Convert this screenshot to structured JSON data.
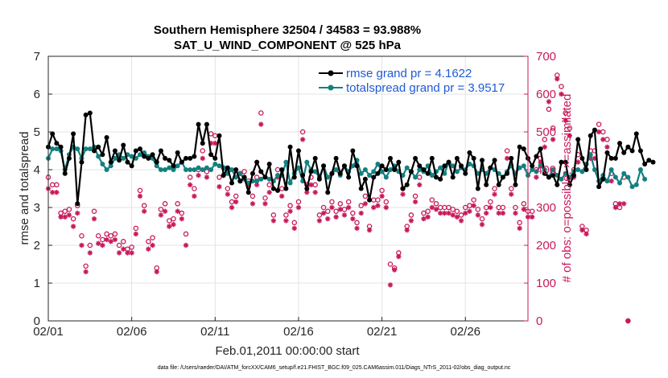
{
  "chart_data": {
    "type": "line",
    "title_line1": "Southern Hemisphere 32504 / 34583 = 93.988%",
    "title_line2": "SAT_U_WIND_COMPONENT @ 525 hPa",
    "xlabel": "Feb.01,2011 00:00:00 start",
    "ylabel_left": "rmse and totalspread",
    "ylabel_right": "# of obs: o=possible; ×=assimilated",
    "footnote": "data file: /Users/raeder/DAI/ATM_forcXX/CAM6_setup/f.e21.FHIST_BGC.f09_025.CAM6assim.011/Diags_NTrS_2011-02/obs_diag_output.nc",
    "xlim": [
      0,
      28.75
    ],
    "ylim_left": [
      0,
      7
    ],
    "ylim_right": [
      0,
      700
    ],
    "x_ticks": [
      {
        "label": "02/01",
        "day": 0
      },
      {
        "label": "02/06",
        "day": 5
      },
      {
        "label": "02/11",
        "day": 10
      },
      {
        "label": "02/16",
        "day": 15
      },
      {
        "label": "02/21",
        "day": 20
      },
      {
        "label": "02/26",
        "day": 25
      }
    ],
    "y_ticks_left": [
      "0",
      "1",
      "2",
      "3",
      "4",
      "5",
      "6",
      "7"
    ],
    "y_ticks_right": [
      "0",
      "100",
      "200",
      "300",
      "400",
      "500",
      "600",
      "700"
    ],
    "x_step_days": 0.25,
    "colors": {
      "rmse": "#000000",
      "spread": "#138080",
      "obs": "#c8195a",
      "legend_text": "#1f5ad6"
    },
    "legend": [
      {
        "label": "rmse grand pr = 4.1622",
        "series": "rmse"
      },
      {
        "label": "totalspread grand pr = 3.9517",
        "series": "spread"
      }
    ],
    "series": [
      {
        "name": "rmse",
        "values": [
          4.6,
          4.95,
          4.7,
          4.6,
          3.9,
          4.3,
          4.95,
          3.1,
          4.2,
          5.45,
          5.5,
          4.5,
          4.6,
          4.4,
          4.85,
          4.2,
          4.5,
          4.25,
          4.65,
          4.2,
          4.1,
          4.5,
          4.55,
          4.35,
          4.3,
          4.4,
          4.2,
          4.5,
          4.3,
          4.25,
          4.1,
          4.45,
          4.2,
          4.3,
          4.3,
          4.35,
          5.2,
          4.7,
          5.2,
          4.4,
          4.3,
          4.9,
          3.85,
          4.05,
          3.65,
          4.0,
          3.7,
          3.8,
          3.4,
          3.9,
          4.2,
          3.95,
          3.8,
          4.15,
          3.5,
          3.45,
          4.0,
          3.5,
          4.6,
          3.8,
          4.5,
          3.85,
          3.5,
          3.95,
          4.3,
          3.75,
          4.1,
          3.4,
          3.9,
          4.3,
          3.9,
          4.1,
          3.8,
          4.5,
          4.1,
          3.5,
          3.75,
          3.2,
          3.8,
          3.9,
          4.1,
          4.0,
          4.3,
          4.0,
          4.2,
          3.5,
          3.6,
          3.95,
          4.3,
          4.1,
          4.0,
          3.9,
          4.3,
          3.8,
          3.75,
          4.1,
          4.2,
          3.8,
          4.3,
          4.1,
          3.9,
          4.45,
          4.3,
          3.5,
          4.25,
          3.6,
          4.05,
          4.25,
          3.6,
          3.8,
          3.9,
          4.3,
          3.6,
          4.6,
          4.55,
          4.3,
          4.1,
          4.35,
          4.55,
          3.9,
          3.8,
          3.85,
          3.6,
          4.2,
          4.2,
          3.6,
          3.85,
          4.8,
          4.3,
          4.0,
          4.9,
          5.05,
          3.55,
          3.75,
          4.45,
          4.3,
          4.3,
          4.7,
          4.45,
          4.6,
          4.5,
          4.95,
          4.5,
          4.15,
          4.25,
          4.2
        ]
      },
      {
        "name": "spread",
        "values": [
          4.3,
          4.55,
          4.55,
          4.5,
          4.0,
          4.4,
          4.6,
          4.55,
          4.3,
          4.55,
          4.55,
          4.6,
          4.35,
          4.15,
          4.0,
          4.1,
          4.3,
          4.4,
          4.3,
          4.4,
          4.35,
          4.3,
          4.4,
          4.45,
          4.35,
          4.3,
          4.1,
          4.0,
          4.0,
          4.05,
          4.0,
          4.1,
          4.2,
          4.0,
          4.0,
          4.0,
          4.05,
          4.0,
          4.05,
          4.0,
          4.15,
          4.1,
          4.05,
          3.9,
          4.0,
          3.8,
          3.9,
          3.75,
          3.65,
          3.7,
          3.7,
          3.75,
          3.8,
          3.75,
          3.7,
          3.85,
          3.85,
          4.2,
          3.65,
          3.9,
          4.05,
          3.7,
          4.2,
          4.0,
          3.95,
          3.8,
          4.1,
          3.8,
          3.9,
          4.0,
          3.85,
          4.1,
          3.95,
          4.1,
          4.25,
          3.9,
          4.0,
          3.85,
          3.95,
          4.15,
          3.95,
          3.8,
          4.0,
          4.1,
          3.95,
          3.85,
          4.05,
          3.95,
          3.8,
          4.0,
          3.95,
          4.1,
          3.85,
          3.95,
          4.05,
          3.9,
          4.2,
          4.1,
          3.95,
          4.05,
          4.0,
          4.15,
          4.1,
          3.9,
          4.0,
          3.9,
          4.05,
          4.0,
          3.9,
          3.8,
          3.95,
          4.1,
          3.9,
          4.05,
          4.1,
          3.85,
          4.0,
          3.95,
          4.1,
          4.0,
          3.8,
          4.0,
          3.85,
          3.75,
          3.9,
          3.8,
          3.95,
          4.0,
          3.95,
          4.15,
          4.4,
          4.0,
          3.7,
          3.85,
          3.7,
          4.0,
          3.8,
          3.65,
          3.9,
          3.8,
          3.55,
          3.6,
          4.0,
          3.75
        ]
      },
      {
        "name": "obs_possible",
        "values": [
          380,
          360,
          360,
          285,
          290,
          295,
          270,
          305,
          225,
          145,
          200,
          290,
          225,
          215,
          230,
          225,
          230,
          200,
          210,
          190,
          195,
          245,
          345,
          305,
          210,
          220,
          140,
          295,
          310,
          265,
          270,
          310,
          285,
          230,
          380,
          350,
          400,
          450,
          395,
          495,
          490,
          380,
          405,
          350,
          315,
          330,
          390,
          395,
          370,
          330,
          380,
          550,
          325,
          360,
          280,
          400,
          350,
          280,
          305,
          260,
          315,
          500,
          360,
          380,
          360,
          280,
          300,
          290,
          315,
          290,
          310,
          295,
          315,
          285,
          260,
          305,
          330,
          250,
          320,
          320,
          345,
          315,
          150,
          140,
          180,
          350,
          250,
          280,
          330,
          380,
          285,
          290,
          320,
          310,
          300,
          300,
          300,
          295,
          290,
          280,
          300,
          305,
          320,
          295,
          270,
          300,
          315,
          350,
          300,
          300,
          450,
          350,
          300,
          260,
          310,
          290,
          290,
          400,
          430,
          480,
          560,
          510,
          650,
          620,
          550,
          510,
          400,
          440,
          250,
          240,
          450,
          450,
          520,
          500,
          480,
          390,
          310,
          300,
          380,
          0
        ]
      },
      {
        "name": "obs_assimilated",
        "values": [
          350,
          340,
          340,
          275,
          275,
          280,
          250,
          285,
          200,
          130,
          180,
          270,
          205,
          200,
          215,
          210,
          215,
          180,
          190,
          180,
          180,
          230,
          330,
          290,
          190,
          200,
          130,
          280,
          290,
          250,
          255,
          290,
          270,
          200,
          360,
          330,
          385,
          430,
          380,
          470,
          470,
          355,
          385,
          335,
          300,
          315,
          370,
          380,
          355,
          310,
          360,
          520,
          310,
          340,
          265,
          380,
          330,
          265,
          290,
          245,
          300,
          480,
          340,
          360,
          340,
          265,
          285,
          270,
          300,
          275,
          295,
          280,
          300,
          270,
          245,
          285,
          310,
          240,
          300,
          305,
          330,
          300,
          95,
          135,
          170,
          335,
          240,
          265,
          315,
          360,
          270,
          275,
          300,
          295,
          285,
          285,
          285,
          280,
          275,
          265,
          285,
          290,
          305,
          280,
          255,
          285,
          300,
          335,
          285,
          285,
          430,
          335,
          285,
          245,
          295,
          275,
          275,
          380,
          420,
          460,
          580,
          480,
          640,
          600,
          530,
          490,
          380,
          420,
          240,
          230,
          430,
          430,
          500,
          480,
          460,
          370,
          300,
          310,
          310,
          0
        ]
      }
    ]
  }
}
